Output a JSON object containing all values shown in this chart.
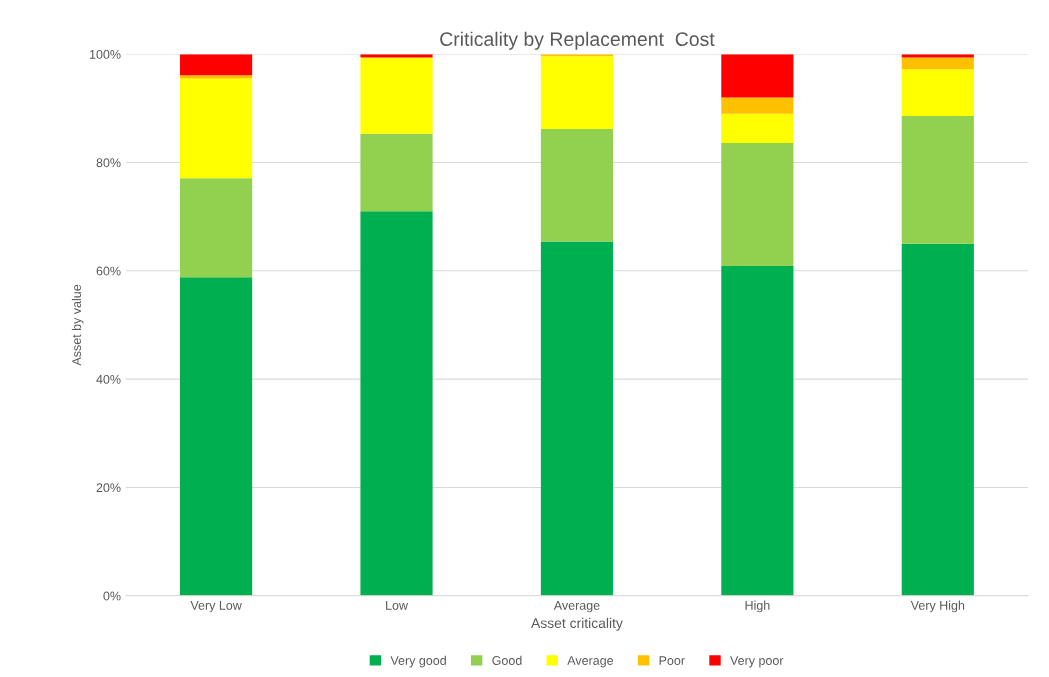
{
  "chart_data": {
    "type": "bar",
    "title": "Criticality by Replacement  Cost",
    "xlabel": "Asset criticality",
    "ylabel": "Asset by value",
    "categories": [
      "Very Low",
      "Low",
      "Average",
      "High",
      "Very High"
    ],
    "stacked": true,
    "series": [
      {
        "name": "Very good",
        "color": "#00b050",
        "values": [
          58.8,
          71.0,
          65.4,
          60.9,
          65.0
        ]
      },
      {
        "name": "Good",
        "color": "#92d050",
        "values": [
          18.3,
          14.3,
          20.8,
          22.7,
          23.6
        ]
      },
      {
        "name": "Average",
        "color": "#ffff00",
        "values": [
          18.4,
          14.1,
          13.4,
          5.4,
          8.6
        ]
      },
      {
        "name": "Poor",
        "color": "#ffc000",
        "values": [
          0.6,
          0,
          0.4,
          3.0,
          2.2
        ]
      },
      {
        "name": "Very poor",
        "color": "#ff0000",
        "values": [
          3.9,
          0.6,
          0,
          8.0,
          0.6
        ]
      }
    ],
    "ylim": [
      0,
      100
    ],
    "yticks": [
      {
        "value": 0,
        "label": "0%"
      },
      {
        "value": 20,
        "label": "20%"
      },
      {
        "value": 40,
        "label": "40%"
      },
      {
        "value": 60,
        "label": "60%"
      },
      {
        "value": 80,
        "label": "80%"
      },
      {
        "value": 100,
        "label": "100%"
      }
    ],
    "grid": "y",
    "legend": "bottom"
  }
}
